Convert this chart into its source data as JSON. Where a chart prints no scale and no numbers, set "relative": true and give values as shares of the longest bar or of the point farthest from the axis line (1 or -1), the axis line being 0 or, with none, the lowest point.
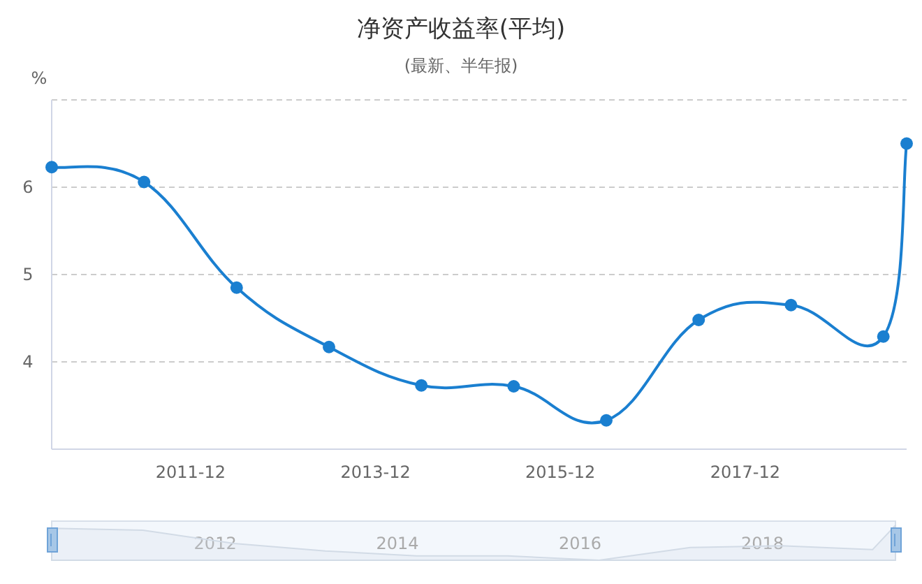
{
  "chart_data": [
    {
      "type": "line",
      "title": "净资产收益率(平均)",
      "subtitle": "(最新、半年报)",
      "ylabel": "%",
      "x": [
        "2010-06-30",
        "2011-06-30",
        "2012-06-30",
        "2013-06-30",
        "2014-06-30",
        "2015-06-30",
        "2016-06-30",
        "2017-06-30",
        "2018-06-30",
        "2019-06-30",
        "2019-09-30"
      ],
      "series": [
        {
          "color": "#1a7fd0",
          "values": [
            6.23,
            6.06,
            4.85,
            4.17,
            3.73,
            3.72,
            3.33,
            4.48,
            4.65,
            4.29,
            6.5
          ]
        }
      ],
      "xlim": [
        "2010-06-30",
        "2019-09-30"
      ],
      "xticks": [
        {
          "value": "2011-12-31",
          "label": "2011-12"
        },
        {
          "value": "2013-12-31",
          "label": "2013-12"
        },
        {
          "value": "2015-12-31",
          "label": "2015-12"
        },
        {
          "value": "2017-12-31",
          "label": "2017-12"
        }
      ],
      "ylim": [
        3,
        7
      ],
      "yticks": [
        4,
        5,
        6,
        {
          "value": 7,
          "label": null
        }
      ],
      "grid": "y",
      "marker": "circle"
    },
    {
      "type": "area",
      "relative": true,
      "x": [
        "2010-06-30",
        "2011-06-30",
        "2012-06-30",
        "2013-06-30",
        "2014-06-30",
        "2015-06-30",
        "2016-06-30",
        "2017-06-30",
        "2018-06-30",
        "2019-06-30",
        "2019-09-30"
      ],
      "values": [
        0.915,
        0.861,
        0.479,
        0.265,
        0.126,
        0.123,
        0,
        0.363,
        0.416,
        0.303,
        1
      ],
      "color": "#d2dbe6",
      "xlim": [
        "2010-06-30",
        "2019-09-30"
      ],
      "xticks": [
        {
          "value": "2012-04-15",
          "label": "2012"
        },
        {
          "value": "2014-04-15",
          "label": "2014"
        },
        {
          "value": "2016-04-15",
          "label": "2016"
        },
        {
          "value": "2018-04-15",
          "label": "2018"
        }
      ]
    }
  ]
}
